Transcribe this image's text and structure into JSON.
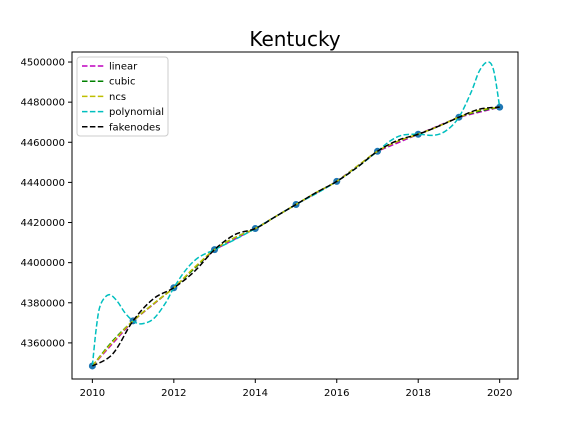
{
  "chart_data": {
    "type": "line",
    "title": "Kentucky",
    "xlabel": "",
    "ylabel": "",
    "xlim": [
      2009.5,
      2020.45
    ],
    "ylim": [
      4342000,
      4505000
    ],
    "grid": false,
    "legend_position": "top-left",
    "x_ticks": [
      2010,
      2012,
      2014,
      2016,
      2018,
      2020
    ],
    "x_tick_labels": [
      "2010",
      "2012",
      "2014",
      "2016",
      "2018",
      "2020"
    ],
    "y_ticks": [
      4360000,
      4380000,
      4400000,
      4420000,
      4440000,
      4460000,
      4480000,
      4500000
    ],
    "y_tick_labels": [
      "4360000",
      "4380000",
      "4400000",
      "4420000",
      "4440000",
      "4460000",
      "4480000",
      "4500000"
    ],
    "data_points": {
      "x": [
        2010,
        2011,
        2012,
        2013,
        2014,
        2015,
        2016,
        2017,
        2018,
        2019,
        2020
      ],
      "y": [
        4348500,
        4371000,
        4387500,
        4406500,
        4417000,
        4429000,
        4440500,
        4455500,
        4464000,
        4472500,
        4477500
      ],
      "color": "#1f77b4"
    },
    "series": [
      {
        "name": "linear",
        "color": "#bf00bf",
        "x": [
          2010,
          2011,
          2012,
          2013,
          2014,
          2015,
          2016,
          2017,
          2018,
          2019,
          2020
        ],
        "y": [
          4348500,
          4371000,
          4387500,
          4406500,
          4417000,
          4429000,
          4440500,
          4455500,
          4464000,
          4472500,
          4477500
        ]
      },
      {
        "name": "cubic",
        "color": "#008000",
        "x": [
          2010,
          2010.5,
          2011,
          2011.5,
          2012,
          2012.5,
          2013,
          2013.5,
          2014,
          2014.5,
          2015,
          2015.5,
          2016,
          2016.5,
          2017,
          2017.5,
          2018,
          2018.5,
          2019,
          2019.5,
          2020
        ],
        "y": [
          4348500,
          4361000,
          4371000,
          4379500,
          4387500,
          4397000,
          4406500,
          4412500,
          4417000,
          4423000,
          4429000,
          4435000,
          4440500,
          4448000,
          4455500,
          4460500,
          4464000,
          4468000,
          4472500,
          4475500,
          4477500
        ]
      },
      {
        "name": "ncs",
        "color": "#bfbf00",
        "x": [
          2010,
          2010.5,
          2011,
          2011.5,
          2012,
          2012.5,
          2013,
          2013.5,
          2014,
          2014.5,
          2015,
          2015.5,
          2016,
          2016.5,
          2017,
          2017.5,
          2018,
          2018.5,
          2019,
          2019.5,
          2020
        ],
        "y": [
          4348500,
          4360500,
          4371000,
          4379500,
          4387500,
          4397500,
          4406500,
          4412500,
          4417000,
          4423000,
          4429000,
          4435000,
          4440500,
          4448000,
          4455500,
          4460500,
          4464000,
          4468000,
          4472500,
          4476000,
          4477500
        ]
      },
      {
        "name": "polynomial",
        "color": "#00bfbf",
        "x": [
          2010,
          2010.1,
          2010.2,
          2010.4,
          2010.6,
          2010.8,
          2011,
          2011.2,
          2011.5,
          2011.8,
          2012,
          2012.3,
          2012.6,
          2013,
          2013.5,
          2014,
          2014.5,
          2015,
          2015.5,
          2016,
          2016.5,
          2017,
          2017.3,
          2017.6,
          2018,
          2018.4,
          2018.7,
          2019,
          2019.3,
          2019.5,
          2019.7,
          2019.85,
          2020
        ],
        "y": [
          4348500,
          4368000,
          4379000,
          4384000,
          4381000,
          4375000,
          4371000,
          4369500,
          4372000,
          4380000,
          4387500,
          4396500,
          4402500,
          4406500,
          4411500,
          4417000,
          4423000,
          4429000,
          4434500,
          4440500,
          4447500,
          4455500,
          4460500,
          4463500,
          4464000,
          4463500,
          4466000,
          4472500,
          4485000,
          4495500,
          4500000,
          4496000,
          4477500
        ]
      },
      {
        "name": "fakenodes",
        "color": "#000000",
        "x": [
          2010,
          2010.5,
          2011,
          2011.5,
          2012,
          2012.5,
          2013,
          2013.5,
          2014,
          2014.5,
          2015,
          2015.5,
          2016,
          2016.5,
          2017,
          2017.5,
          2018,
          2018.5,
          2019,
          2019.5,
          2020
        ],
        "y": [
          4348500,
          4354500,
          4371000,
          4382000,
          4387500,
          4395500,
          4406500,
          4414000,
          4417000,
          4423000,
          4429000,
          4435000,
          4440500,
          4447500,
          4455500,
          4461000,
          4464000,
          4468000,
          4472500,
          4476500,
          4477500
        ]
      }
    ]
  }
}
